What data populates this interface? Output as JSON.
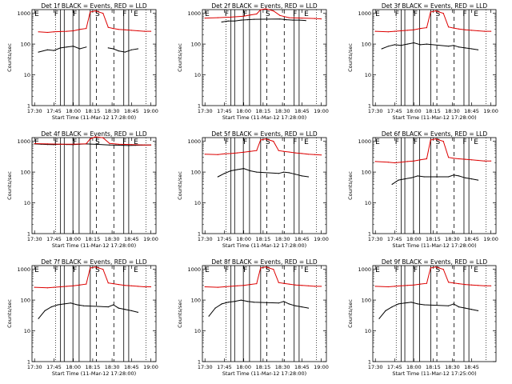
{
  "chart_data": [
    {
      "type": "line",
      "title": "Det 1f BLACK = Events, RED = LLD",
      "ylabel": "Counts/sec",
      "xlabel": "Start Time (11-Mar-12 17:28:00)",
      "x_ticks": [
        "17:30",
        "17:45",
        "18:00",
        "18:15",
        "18:30",
        "18:45",
        "19:00"
      ],
      "y_scale": "log",
      "ylim": [
        1,
        1000
      ],
      "y_ticks": [
        "1",
        "10",
        "100",
        "1000"
      ],
      "markers": [
        "E",
        "F",
        "F",
        "S",
        "F",
        "E"
      ],
      "series": [
        {
          "name": "Events",
          "color": "#000000",
          "x": [
            "17:33",
            "17:40",
            "17:45",
            "17:50",
            "17:55",
            "18:00",
            "18:05",
            "18:10",
            "18:13",
            "18:23",
            "18:27",
            "18:31",
            "18:35",
            "18:40",
            "18:45",
            "18:50"
          ],
          "y": [
            55,
            65,
            62,
            75,
            80,
            85,
            70,
            80,
            null,
            null,
            75,
            70,
            60,
            55,
            65,
            70
          ]
        },
        {
          "name": "LLD",
          "color": "#dd0000",
          "x": [
            "17:33",
            "17:40",
            "17:45",
            "17:50",
            "17:55",
            "18:00",
            "18:05",
            "18:10",
            "18:13",
            "18:17",
            "18:23",
            "18:27",
            "18:31",
            "18:35",
            "18:40",
            "18:45",
            "18:50",
            "18:55",
            "19:00"
          ],
          "y": [
            250,
            240,
            250,
            255,
            260,
            270,
            300,
            320,
            1100,
            1200,
            1000,
            350,
            320,
            300,
            290,
            280,
            270,
            260,
            260
          ]
        }
      ]
    },
    {
      "type": "line",
      "title": "Det 2f BLACK = Events, RED = LLD",
      "ylabel": "Counts/sec",
      "xlabel": "Start Time (11-Mar-12 17:28:00)",
      "x_ticks": [
        "17:30",
        "17:45",
        "18:00",
        "18:15",
        "18:30",
        "18:45",
        "19:00"
      ],
      "y_scale": "log",
      "ylim": [
        1,
        1000
      ],
      "y_ticks": [
        "1",
        "10",
        "100",
        "1000"
      ],
      "markers": [
        "E",
        "F",
        "F",
        "S",
        "F",
        "E"
      ],
      "series": [
        {
          "name": "Events",
          "color": "#000000",
          "x": [
            "17:43",
            "17:48",
            "17:53",
            "17:58",
            "18:03",
            "18:08",
            "18:28",
            "18:33",
            "18:38",
            "18:43",
            "18:48"
          ],
          "y": [
            520,
            560,
            560,
            600,
            620,
            640,
            650,
            620,
            600,
            600,
            580
          ]
        },
        {
          "name": "LLD",
          "color": "#dd0000",
          "x": [
            "17:30",
            "17:40",
            "17:50",
            "18:00",
            "18:05",
            "18:10",
            "18:13",
            "18:17",
            "18:23",
            "18:28",
            "18:35",
            "18:45",
            "18:55",
            "19:00"
          ],
          "y": [
            700,
            720,
            750,
            800,
            880,
            950,
            1300,
            1400,
            1200,
            850,
            720,
            700,
            680,
            660
          ]
        }
      ]
    },
    {
      "type": "line",
      "title": "Det 3f BLACK = Events, RED = LLD",
      "ylabel": "Counts/sec",
      "xlabel": "Start Time (11-Mar-12 17:28:00)",
      "x_ticks": [
        "17:30",
        "17:45",
        "18:00",
        "18:15",
        "18:30",
        "18:45",
        "19:00"
      ],
      "y_scale": "log",
      "ylim": [
        1,
        1000
      ],
      "y_ticks": [
        "1",
        "10",
        "100",
        "1000"
      ],
      "markers": [
        "E",
        "F",
        "F",
        "S",
        "F",
        "E"
      ],
      "series": [
        {
          "name": "Events",
          "color": "#000000",
          "x": [
            "17:35",
            "17:40",
            "17:45",
            "17:50",
            "17:55",
            "18:00",
            "18:05",
            "18:10",
            "18:27",
            "18:31",
            "18:35",
            "18:40",
            "18:45",
            "18:50"
          ],
          "y": [
            70,
            85,
            95,
            90,
            100,
            110,
            95,
            100,
            85,
            90,
            80,
            75,
            70,
            65
          ]
        },
        {
          "name": "LLD",
          "color": "#dd0000",
          "x": [
            "17:30",
            "17:40",
            "17:45",
            "17:50",
            "17:55",
            "18:00",
            "18:05",
            "18:10",
            "18:13",
            "18:17",
            "18:23",
            "18:27",
            "18:31",
            "18:35",
            "18:40",
            "18:45",
            "18:50",
            "18:55",
            "19:00"
          ],
          "y": [
            260,
            250,
            260,
            270,
            280,
            290,
            320,
            340,
            1100,
            1200,
            1000,
            360,
            330,
            310,
            290,
            280,
            270,
            260,
            260
          ]
        }
      ]
    },
    {
      "type": "line",
      "title": "Det 4f BLACK = Events, RED = LLD",
      "ylabel": "Counts/sec",
      "xlabel": "Start Time (11-Mar-12 17:28:00)",
      "x_ticks": [
        "17:30",
        "17:45",
        "18:00",
        "18:15",
        "18:30",
        "18:45",
        "19:00"
      ],
      "y_scale": "log",
      "ylim": [
        1,
        1000
      ],
      "y_ticks": [
        "1",
        "10",
        "100",
        "1000"
      ],
      "markers": [
        "E",
        "F",
        "F",
        "S",
        "F",
        "E"
      ],
      "series": [
        {
          "name": "Events",
          "color": "#000000",
          "x": [
            "17:30",
            "17:35",
            "17:40",
            "17:45",
            "17:50",
            "17:55",
            "18:00",
            "18:05",
            "18:10",
            "18:28",
            "18:33",
            "18:38",
            "18:43",
            "18:48",
            "18:53",
            "19:00"
          ],
          "y": [
            820,
            800,
            790,
            780,
            800,
            790,
            780,
            800,
            820,
            760,
            750,
            740,
            730,
            740,
            750,
            760
          ]
        },
        {
          "name": "LLD",
          "color": "#dd0000",
          "x": [
            "17:30",
            "17:40",
            "17:50",
            "18:00",
            "18:10",
            "18:13",
            "18:17",
            "18:23",
            "18:28",
            "18:35",
            "18:45",
            "18:55",
            "19:00"
          ],
          "y": [
            840,
            820,
            800,
            800,
            830,
            1200,
            1400,
            1300,
            850,
            800,
            780,
            760,
            760
          ]
        }
      ]
    },
    {
      "type": "line",
      "title": "Det 5f BLACK = Events, RED = LLD",
      "ylabel": "Counts/sec",
      "xlabel": "Start Time (11-Mar-12 17:28:00)",
      "x_ticks": [
        "17:30",
        "17:45",
        "18:00",
        "18:15",
        "18:30",
        "18:45",
        "19:00"
      ],
      "y_scale": "log",
      "ylim": [
        1,
        1000
      ],
      "y_ticks": [
        "1",
        "10",
        "100",
        "1000"
      ],
      "markers": [
        "F",
        "F",
        "S",
        "F",
        "E"
      ],
      "series": [
        {
          "name": "Events",
          "color": "#000000",
          "x": [
            "17:40",
            "17:45",
            "17:50",
            "17:55",
            "18:00",
            "18:05",
            "18:10",
            "18:27",
            "18:31",
            "18:35",
            "18:40",
            "18:45",
            "18:50"
          ],
          "y": [
            70,
            90,
            110,
            120,
            130,
            110,
            100,
            90,
            100,
            95,
            85,
            75,
            70
          ]
        },
        {
          "name": "LLD",
          "color": "#dd0000",
          "x": [
            "17:30",
            "17:40",
            "17:45",
            "17:50",
            "17:55",
            "18:00",
            "18:05",
            "18:10",
            "18:13",
            "18:17",
            "18:23",
            "18:27",
            "18:31",
            "18:35",
            "18:40",
            "18:45",
            "18:50",
            "18:55",
            "19:00"
          ],
          "y": [
            380,
            370,
            390,
            400,
            420,
            440,
            470,
            500,
            1100,
            1200,
            1000,
            500,
            470,
            450,
            420,
            400,
            380,
            370,
            360
          ]
        }
      ]
    },
    {
      "type": "line",
      "title": "Det 6f BLACK = Events, RED = LLD",
      "ylabel": "Counts/sec",
      "xlabel": "Start Time (11-Mar-12 17:28:00)",
      "x_ticks": [
        "17:30",
        "17:45",
        "18:00",
        "18:15",
        "18:30",
        "18:45",
        "19:00"
      ],
      "y_scale": "log",
      "ylim": [
        1,
        1000
      ],
      "y_ticks": [
        "1",
        "10",
        "100",
        "1000"
      ],
      "markers": [
        "E",
        "F",
        "F",
        "S",
        "F",
        "E"
      ],
      "series": [
        {
          "name": "Events",
          "color": "#000000",
          "x": [
            "17:43",
            "17:48",
            "17:53",
            "17:58",
            "18:03",
            "18:08",
            "18:27",
            "18:31",
            "18:35",
            "18:40",
            "18:45",
            "18:50"
          ],
          "y": [
            40,
            55,
            60,
            65,
            75,
            70,
            70,
            80,
            75,
            65,
            60,
            55
          ]
        },
        {
          "name": "LLD",
          "color": "#dd0000",
          "x": [
            "17:30",
            "17:40",
            "17:45",
            "17:50",
            "17:55",
            "18:00",
            "18:05",
            "18:10",
            "18:13",
            "18:17",
            "18:23",
            "18:27",
            "18:31",
            "18:35",
            "18:40",
            "18:45",
            "18:50",
            "18:55",
            "19:00"
          ],
          "y": [
            220,
            210,
            200,
            210,
            220,
            230,
            250,
            270,
            1100,
            1200,
            1000,
            300,
            280,
            270,
            260,
            250,
            240,
            230,
            230
          ]
        }
      ]
    },
    {
      "type": "line",
      "title": "Det 7f BLACK = Events, RED = LLD",
      "ylabel": "Counts/sec",
      "xlabel": "Start Time (11-Mar-12 17:28:00)",
      "x_ticks": [
        "17:30",
        "17:45",
        "18:00",
        "18:15",
        "18:30",
        "18:45",
        "19:00"
      ],
      "y_scale": "log",
      "ylim": [
        1,
        1000
      ],
      "y_ticks": [
        "1",
        "10",
        "100",
        "1000"
      ],
      "markers": [
        "E",
        "F",
        "F",
        "S",
        "F",
        "E"
      ],
      "series": [
        {
          "name": "Events",
          "color": "#000000",
          "x": [
            "17:33",
            "17:38",
            "17:43",
            "17:48",
            "17:53",
            "17:58",
            "18:03",
            "18:08",
            "18:27",
            "18:31",
            "18:35",
            "18:40",
            "18:45",
            "18:50"
          ],
          "y": [
            25,
            45,
            60,
            70,
            75,
            80,
            70,
            65,
            60,
            70,
            55,
            50,
            45,
            40
          ]
        },
        {
          "name": "LLD",
          "color": "#dd0000",
          "x": [
            "17:30",
            "17:40",
            "17:45",
            "17:50",
            "17:55",
            "18:00",
            "18:05",
            "18:10",
            "18:13",
            "18:17",
            "18:23",
            "18:27",
            "18:31",
            "18:35",
            "18:40",
            "18:45",
            "18:50",
            "18:55",
            "19:00"
          ],
          "y": [
            260,
            250,
            260,
            270,
            280,
            290,
            310,
            330,
            1100,
            1200,
            1000,
            360,
            340,
            320,
            300,
            290,
            280,
            270,
            270
          ]
        }
      ]
    },
    {
      "type": "line",
      "title": "Det 8f BLACK = Events, RED = LLD",
      "ylabel": "Counts/sec",
      "xlabel": "Start Time (11-Mar-12 17:28:00)",
      "x_ticks": [
        "17:30",
        "17:45",
        "18:00",
        "18:15",
        "18:30",
        "18:45",
        "19:00"
      ],
      "y_scale": "log",
      "ylim": [
        1,
        1000
      ],
      "y_ticks": [
        "1",
        "10",
        "100",
        "1000"
      ],
      "markers": [
        "E",
        "F",
        "F",
        "S",
        "F",
        "E"
      ],
      "series": [
        {
          "name": "Events",
          "color": "#000000",
          "x": [
            "17:33",
            "17:38",
            "17:43",
            "17:48",
            "17:53",
            "17:58",
            "18:03",
            "18:08",
            "18:27",
            "18:31",
            "18:35",
            "18:40",
            "18:45",
            "18:50"
          ],
          "y": [
            30,
            55,
            75,
            85,
            90,
            100,
            90,
            85,
            80,
            90,
            75,
            65,
            60,
            55
          ]
        },
        {
          "name": "LLD",
          "color": "#dd0000",
          "x": [
            "17:30",
            "17:40",
            "17:45",
            "17:50",
            "17:55",
            "18:00",
            "18:05",
            "18:10",
            "18:13",
            "18:17",
            "18:23",
            "18:27",
            "18:31",
            "18:35",
            "18:40",
            "18:45",
            "18:50",
            "18:55",
            "19:00"
          ],
          "y": [
            270,
            260,
            270,
            280,
            290,
            300,
            320,
            340,
            1100,
            1200,
            1000,
            370,
            350,
            330,
            310,
            300,
            290,
            280,
            280
          ]
        }
      ]
    },
    {
      "type": "line",
      "title": "Det 9f BLACK = Events, RED = LLD",
      "ylabel": "Counts/sec",
      "xlabel": "Start Time (11-Mar-12 17:25:00)",
      "x_ticks": [
        "17:30",
        "17:45",
        "18:00",
        "18:15",
        "18:30",
        "18:45"
      ],
      "y_scale": "log",
      "ylim": [
        1,
        1000
      ],
      "y_ticks": [
        "1",
        "10",
        "100",
        "1000"
      ],
      "markers": [
        "E",
        "F",
        "F",
        "S",
        "F",
        "E"
      ],
      "series": [
        {
          "name": "Events",
          "color": "#000000",
          "x": [
            "17:33",
            "17:38",
            "17:43",
            "17:48",
            "17:53",
            "17:58",
            "18:03",
            "18:08",
            "18:27",
            "18:31",
            "18:35",
            "18:40",
            "18:45",
            "18:50"
          ],
          "y": [
            25,
            45,
            60,
            75,
            80,
            85,
            75,
            70,
            65,
            75,
            60,
            55,
            50,
            45
          ]
        },
        {
          "name": "LLD",
          "color": "#dd0000",
          "x": [
            "17:30",
            "17:40",
            "17:45",
            "17:50",
            "17:55",
            "18:00",
            "18:05",
            "18:10",
            "18:13",
            "18:17",
            "18:23",
            "18:27",
            "18:31",
            "18:35",
            "18:40",
            "18:45",
            "18:50",
            "18:55",
            "19:00"
          ],
          "y": [
            280,
            270,
            280,
            290,
            300,
            310,
            330,
            350,
            1100,
            1200,
            1000,
            380,
            360,
            340,
            320,
            310,
            300,
            290,
            290
          ]
        }
      ]
    }
  ]
}
